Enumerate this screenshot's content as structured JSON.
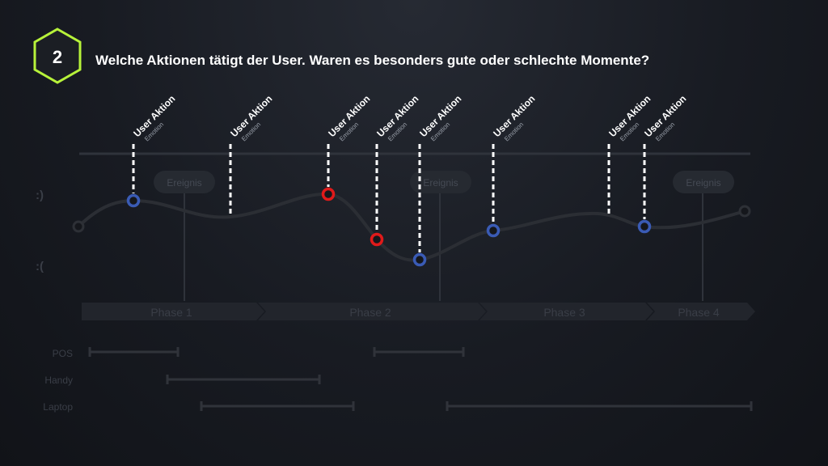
{
  "header": {
    "step_number": "2",
    "question": "Welche Aktionen tätigt der User. Waren es besonders gute oder schlechte Momente?"
  },
  "emotion_axis": {
    "good": ":)",
    "bad": ":("
  },
  "events": [
    "Ereignis",
    "Ereignis",
    "Ereignis"
  ],
  "phases": [
    "Phase 1",
    "Phase 2",
    "Phase 3",
    "Phase 4"
  ],
  "devices": [
    "POS",
    "Handy",
    "Laptop"
  ],
  "markers": [
    {
      "title": "User Aktion",
      "subtitle": "Emotion",
      "type": "blue"
    },
    {
      "title": "User Aktion",
      "subtitle": "Emotion",
      "type": "none"
    },
    {
      "title": "User Aktion",
      "subtitle": "Emotion",
      "type": "red"
    },
    {
      "title": "User Aktion",
      "subtitle": "Emotion",
      "type": "red"
    },
    {
      "title": "User Aktion",
      "subtitle": "Emotion",
      "type": "blue"
    },
    {
      "title": "User Aktion",
      "subtitle": "Emotion",
      "type": "blue"
    },
    {
      "title": "User Aktion",
      "subtitle": "Emotion",
      "type": "none"
    },
    {
      "title": "User Aktion",
      "subtitle": "Emotion",
      "type": "blue"
    }
  ],
  "colors": {
    "accent": "#b7f23a",
    "good": "#3a5bb5",
    "bad": "#e01a1a",
    "faint": "#3a3e47"
  }
}
